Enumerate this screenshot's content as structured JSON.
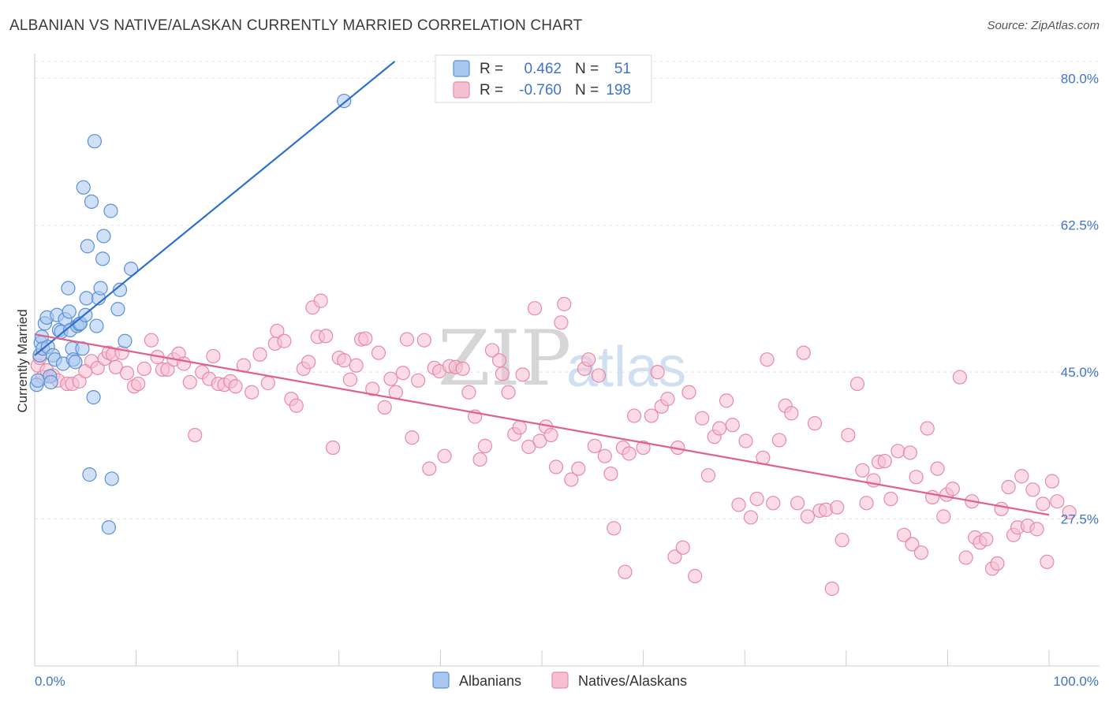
{
  "title": "ALBANIAN VS NATIVE/ALASKAN CURRENTLY MARRIED CORRELATION CHART",
  "source": "Source: ZipAtlas.com",
  "watermark": {
    "zip": "ZIP",
    "atlas": "atlas"
  },
  "legend": {
    "rows": [
      {
        "r_label": "R =",
        "r_value": "0.462",
        "n_label": "N =",
        "n_value": "51",
        "color": "#a9c8f0",
        "stroke": "#5a8fd8"
      },
      {
        "r_label": "R =",
        "r_value": "-0.760",
        "n_label": "N =",
        "n_value": "198",
        "color": "#f7c0d2",
        "stroke": "#e58aa9"
      }
    ]
  },
  "bottom_legend": [
    {
      "label": "Albanians",
      "color": "#a9c8f0",
      "stroke": "#5a8fd8"
    },
    {
      "label": "Natives/Alaskans",
      "color": "#f7c0d2",
      "stroke": "#e58aa9"
    }
  ],
  "chart_data": {
    "type": "scatter",
    "ylabel": "Currently Married",
    "xlim": [
      0,
      100
    ],
    "ylim": [
      10,
      82
    ],
    "x_tick_labels": [
      "0.0%",
      "100.0%"
    ],
    "y_ticks": [
      27.5,
      45.0,
      62.5,
      80.0
    ],
    "y_tick_labels": [
      "27.5%",
      "45.0%",
      "62.5%",
      "80.0%"
    ],
    "grid": true,
    "series": [
      {
        "name": "Albanians",
        "color": "#a9c8f0",
        "stroke": "#5a8fd8",
        "trend": {
          "x": [
            0,
            36.5
          ],
          "y": [
            47.0,
            83.0
          ],
          "color": "#2f6fd0"
        },
        "points": [
          [
            0.2,
            43.5
          ],
          [
            0.3,
            44.0
          ],
          [
            0.5,
            47.0
          ],
          [
            0.6,
            48.5
          ],
          [
            0.7,
            49.2
          ],
          [
            0.8,
            47.8
          ],
          [
            1.0,
            50.8
          ],
          [
            1.2,
            51.5
          ],
          [
            1.3,
            48.0
          ],
          [
            1.5,
            44.5
          ],
          [
            1.6,
            43.8
          ],
          [
            1.8,
            47.0
          ],
          [
            2.0,
            46.5
          ],
          [
            2.2,
            51.8
          ],
          [
            2.4,
            50.0
          ],
          [
            2.6,
            49.8
          ],
          [
            2.8,
            46.0
          ],
          [
            3.0,
            51.3
          ],
          [
            3.3,
            55.0
          ],
          [
            3.4,
            52.2
          ],
          [
            3.5,
            50.0
          ],
          [
            3.7,
            47.8
          ],
          [
            3.8,
            46.5
          ],
          [
            4.0,
            46.2
          ],
          [
            4.2,
            50.5
          ],
          [
            4.4,
            50.7
          ],
          [
            4.5,
            50.8
          ],
          [
            4.7,
            47.8
          ],
          [
            4.8,
            67.0
          ],
          [
            5.0,
            51.8
          ],
          [
            5.1,
            53.8
          ],
          [
            5.2,
            60.0
          ],
          [
            5.4,
            32.8
          ],
          [
            5.6,
            65.3
          ],
          [
            5.8,
            42.0
          ],
          [
            5.9,
            72.5
          ],
          [
            6.1,
            50.5
          ],
          [
            6.3,
            53.8
          ],
          [
            6.5,
            55.0
          ],
          [
            6.7,
            58.5
          ],
          [
            6.8,
            61.2
          ],
          [
            7.3,
            26.5
          ],
          [
            7.5,
            64.2
          ],
          [
            7.6,
            32.3
          ],
          [
            8.2,
            52.5
          ],
          [
            8.4,
            54.8
          ],
          [
            8.9,
            48.7
          ],
          [
            9.5,
            57.3
          ],
          [
            30.5,
            77.3
          ]
        ]
      },
      {
        "name": "Natives/Alaskans",
        "color": "#f7c0d2",
        "stroke": "#e58aa9",
        "trend": {
          "x": [
            0,
            100
          ],
          "y": [
            49.5,
            28.0
          ],
          "color": "#e0608c"
        },
        "points": [
          [
            0.3,
            45.8
          ],
          [
            0.5,
            46.7
          ],
          [
            0.8,
            44.4
          ],
          [
            1.2,
            45.2
          ],
          [
            1.8,
            44.6
          ],
          [
            2.3,
            44.0
          ],
          [
            3.2,
            43.6
          ],
          [
            3.7,
            43.6
          ],
          [
            4.4,
            43.9
          ],
          [
            5.0,
            45.1
          ],
          [
            5.6,
            46.3
          ],
          [
            6.2,
            45.5
          ],
          [
            6.9,
            46.6
          ],
          [
            7.3,
            47.3
          ],
          [
            7.7,
            47.1
          ],
          [
            8.0,
            45.6
          ],
          [
            8.6,
            47.3
          ],
          [
            9.1,
            44.9
          ],
          [
            9.8,
            43.3
          ],
          [
            10.2,
            43.6
          ],
          [
            10.8,
            45.4
          ],
          [
            11.5,
            48.8
          ],
          [
            12.1,
            46.8
          ],
          [
            12.6,
            45.3
          ],
          [
            13.1,
            45.3
          ],
          [
            13.7,
            46.5
          ],
          [
            14.2,
            47.2
          ],
          [
            14.7,
            46.0
          ],
          [
            15.3,
            43.8
          ],
          [
            15.8,
            37.5
          ],
          [
            16.5,
            45.0
          ],
          [
            17.2,
            44.2
          ],
          [
            17.6,
            46.9
          ],
          [
            18.1,
            43.6
          ],
          [
            18.7,
            43.5
          ],
          [
            19.3,
            43.9
          ],
          [
            19.8,
            43.3
          ],
          [
            20.6,
            45.8
          ],
          [
            21.4,
            42.6
          ],
          [
            22.2,
            47.1
          ],
          [
            23.0,
            43.7
          ],
          [
            23.7,
            48.4
          ],
          [
            23.9,
            49.9
          ],
          [
            24.6,
            48.7
          ],
          [
            25.3,
            41.8
          ],
          [
            25.8,
            41.0
          ],
          [
            26.5,
            45.4
          ],
          [
            27.0,
            46.2
          ],
          [
            27.4,
            52.7
          ],
          [
            27.9,
            49.2
          ],
          [
            28.2,
            53.5
          ],
          [
            28.7,
            49.3
          ],
          [
            29.4,
            36.0
          ],
          [
            30.0,
            46.7
          ],
          [
            30.5,
            46.4
          ],
          [
            31.1,
            44.1
          ],
          [
            31.7,
            45.8
          ],
          [
            32.2,
            48.9
          ],
          [
            32.6,
            49.0
          ],
          [
            33.3,
            43.0
          ],
          [
            33.9,
            47.3
          ],
          [
            34.5,
            40.8
          ],
          [
            35.1,
            44.2
          ],
          [
            35.6,
            42.6
          ],
          [
            36.3,
            44.9
          ],
          [
            36.7,
            48.9
          ],
          [
            37.2,
            37.2
          ],
          [
            37.8,
            44.0
          ],
          [
            38.4,
            48.8
          ],
          [
            38.9,
            33.5
          ],
          [
            39.4,
            45.5
          ],
          [
            39.9,
            45.1
          ],
          [
            40.4,
            35.0
          ],
          [
            40.9,
            45.7
          ],
          [
            41.5,
            45.6
          ],
          [
            42.2,
            45.4
          ],
          [
            42.8,
            42.6
          ],
          [
            43.4,
            39.7
          ],
          [
            43.9,
            34.6
          ],
          [
            44.4,
            36.2
          ],
          [
            45.1,
            47.6
          ],
          [
            45.8,
            46.4
          ],
          [
            46.1,
            44.8
          ],
          [
            46.7,
            42.6
          ],
          [
            47.3,
            37.6
          ],
          [
            47.8,
            38.4
          ],
          [
            48.1,
            44.7
          ],
          [
            48.7,
            36.1
          ],
          [
            49.3,
            52.6
          ],
          [
            49.8,
            36.8
          ],
          [
            50.4,
            38.5
          ],
          [
            50.9,
            37.5
          ],
          [
            51.4,
            33.7
          ],
          [
            51.9,
            50.9
          ],
          [
            52.2,
            53.1
          ],
          [
            52.9,
            32.2
          ],
          [
            53.6,
            33.5
          ],
          [
            54.2,
            45.4
          ],
          [
            54.6,
            46.5
          ],
          [
            55.2,
            36.2
          ],
          [
            55.6,
            44.6
          ],
          [
            56.2,
            35.0
          ],
          [
            56.8,
            32.9
          ],
          [
            57.1,
            26.4
          ],
          [
            58.0,
            36.0
          ],
          [
            58.2,
            21.2
          ],
          [
            58.6,
            35.3
          ],
          [
            59.1,
            39.8
          ],
          [
            60.0,
            36.0
          ],
          [
            60.8,
            39.8
          ],
          [
            61.4,
            45.0
          ],
          [
            61.8,
            40.9
          ],
          [
            62.4,
            41.8
          ],
          [
            63.1,
            23.0
          ],
          [
            63.4,
            36.0
          ],
          [
            63.9,
            24.1
          ],
          [
            64.5,
            42.6
          ],
          [
            65.1,
            20.7
          ],
          [
            65.8,
            39.5
          ],
          [
            66.4,
            32.7
          ],
          [
            67.0,
            37.3
          ],
          [
            67.5,
            38.3
          ],
          [
            68.2,
            41.6
          ],
          [
            68.8,
            38.7
          ],
          [
            69.4,
            29.2
          ],
          [
            70.1,
            36.8
          ],
          [
            70.6,
            27.7
          ],
          [
            71.2,
            29.9
          ],
          [
            71.8,
            34.8
          ],
          [
            72.2,
            46.5
          ],
          [
            72.8,
            29.4
          ],
          [
            73.4,
            36.9
          ],
          [
            74.0,
            41.0
          ],
          [
            74.6,
            40.1
          ],
          [
            75.2,
            29.4
          ],
          [
            75.8,
            47.3
          ],
          [
            76.2,
            27.8
          ],
          [
            76.9,
            38.9
          ],
          [
            77.4,
            28.5
          ],
          [
            78.0,
            28.6
          ],
          [
            78.6,
            19.2
          ],
          [
            79.1,
            28.9
          ],
          [
            79.6,
            25.0
          ],
          [
            80.2,
            37.5
          ],
          [
            81.1,
            43.6
          ],
          [
            81.6,
            33.3
          ],
          [
            82.0,
            29.4
          ],
          [
            82.7,
            32.1
          ],
          [
            83.2,
            34.3
          ],
          [
            83.8,
            34.4
          ],
          [
            84.4,
            29.9
          ],
          [
            85.1,
            35.6
          ],
          [
            85.7,
            25.6
          ],
          [
            86.3,
            35.4
          ],
          [
            86.5,
            24.5
          ],
          [
            86.9,
            32.5
          ],
          [
            87.4,
            23.5
          ],
          [
            88.0,
            38.3
          ],
          [
            88.5,
            30.1
          ],
          [
            89.0,
            33.5
          ],
          [
            89.6,
            27.8
          ],
          [
            89.9,
            30.4
          ],
          [
            90.5,
            31.1
          ],
          [
            91.2,
            44.4
          ],
          [
            91.8,
            22.9
          ],
          [
            92.4,
            29.6
          ],
          [
            92.7,
            25.3
          ],
          [
            93.2,
            24.7
          ],
          [
            93.8,
            25.1
          ],
          [
            94.4,
            21.6
          ],
          [
            94.9,
            22.2
          ],
          [
            95.3,
            28.7
          ],
          [
            96.0,
            31.3
          ],
          [
            96.5,
            25.6
          ],
          [
            96.9,
            26.5
          ],
          [
            97.3,
            32.6
          ],
          [
            97.9,
            26.7
          ],
          [
            98.4,
            31.0
          ],
          [
            98.8,
            26.3
          ],
          [
            99.4,
            29.3
          ],
          [
            99.8,
            22.4
          ],
          [
            100.3,
            32.0
          ],
          [
            100.8,
            29.6
          ],
          [
            102.0,
            28.3
          ]
        ]
      }
    ]
  }
}
